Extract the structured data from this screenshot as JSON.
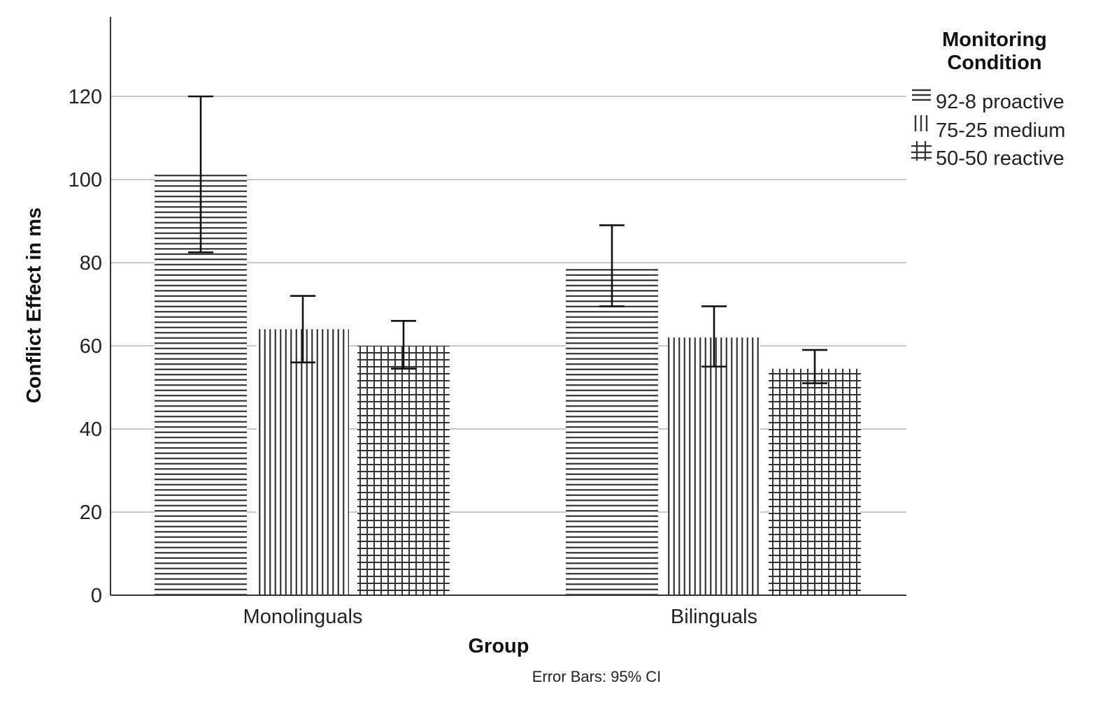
{
  "chart_data": {
    "type": "bar",
    "title": "",
    "xlabel": "Group",
    "ylabel": "Conflict Effect in ms",
    "ylim": [
      0,
      135
    ],
    "yticks": [
      0,
      20,
      40,
      60,
      80,
      100,
      120
    ],
    "grid": true,
    "categories": [
      "Monolinguals",
      "Bilinguals"
    ],
    "legend": {
      "title_line1": "Monitoring",
      "title_line2": "Condition",
      "position": "top-right"
    },
    "series": [
      {
        "name": "92-8 proactive",
        "pattern": "horizontal-lines",
        "values": [
          101.5,
          78.5
        ],
        "ci_lower": [
          82.5,
          69.5
        ],
        "ci_upper": [
          120,
          89
        ]
      },
      {
        "name": "75-25 medium",
        "pattern": "vertical-lines",
        "values": [
          64,
          62
        ],
        "ci_lower": [
          56,
          55
        ],
        "ci_upper": [
          72,
          69.5
        ]
      },
      {
        "name": "50-50 reactive",
        "pattern": "crosshatch",
        "values": [
          60,
          54.5
        ],
        "ci_lower": [
          54.5,
          51
        ],
        "ci_upper": [
          66,
          59
        ]
      }
    ],
    "note": "Error Bars: 95% CI",
    "colors": {
      "line": "#333333",
      "grid": "#b4b4b4",
      "axis": "#333333"
    }
  }
}
